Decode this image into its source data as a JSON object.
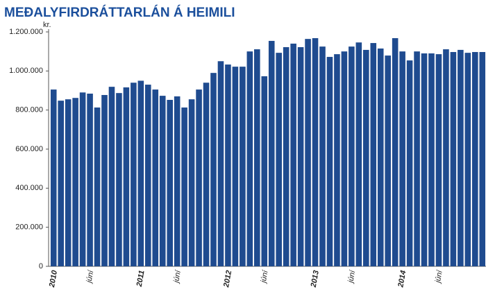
{
  "chart_data": {
    "type": "bar",
    "title": "MEÐALYFIRDRÁTTARLÁN Á HEIMILI",
    "y_label": "kr.",
    "categories": [
      "2010",
      null,
      null,
      null,
      null,
      "júní",
      null,
      null,
      null,
      null,
      null,
      null,
      "2011",
      null,
      null,
      null,
      null,
      "júní",
      null,
      null,
      null,
      null,
      null,
      null,
      "2012",
      null,
      null,
      null,
      null,
      "júní",
      null,
      null,
      null,
      null,
      null,
      null,
      "2013",
      null,
      null,
      null,
      null,
      "júní",
      null,
      null,
      null,
      null,
      null,
      null,
      "2014",
      null,
      null,
      null,
      null,
      "júní",
      null,
      null,
      null,
      null,
      null,
      null
    ],
    "values": [
      905000,
      848000,
      855000,
      862000,
      890000,
      884000,
      813000,
      877000,
      919000,
      887000,
      916000,
      940000,
      950000,
      930000,
      905000,
      873000,
      852000,
      870000,
      813000,
      855000,
      905000,
      940000,
      990000,
      1050000,
      1033000,
      1022000,
      1022000,
      1100000,
      1111000,
      973000,
      1154000,
      1093000,
      1122000,
      1140000,
      1122000,
      1164000,
      1168000,
      1125000,
      1072000,
      1086000,
      1100000,
      1125000,
      1146000,
      1108000,
      1143000,
      1115000,
      1079000,
      1168000,
      1100000,
      1054000,
      1100000,
      1090000,
      1090000,
      1086000,
      1111000,
      1097000,
      1108000,
      1093000,
      1097000,
      1097000
    ],
    "color": "#1f4b8f",
    "ylim": [
      0,
      1200000
    ],
    "yticks": [
      0,
      {
        "value": 200000,
        "label": "200.000"
      },
      {
        "value": 400000,
        "label": "400.000"
      },
      {
        "value": 600000,
        "label": "600.000"
      },
      {
        "value": 800000,
        "label": "800.000"
      },
      {
        "value": 1000000,
        "label": "1.000.000"
      },
      {
        "value": 1200000,
        "label": "1.200.000"
      }
    ],
    "grid": false
  }
}
